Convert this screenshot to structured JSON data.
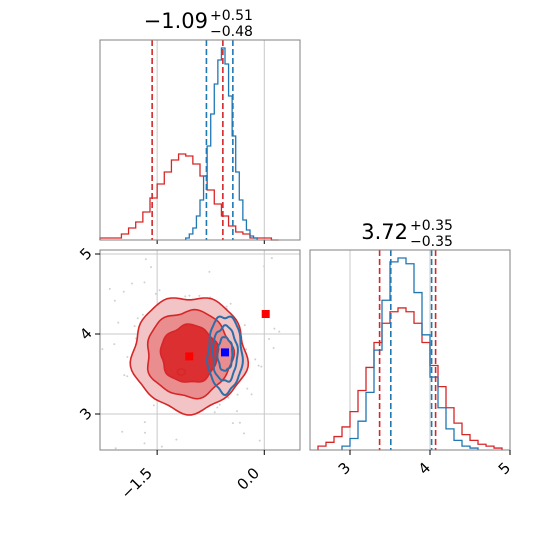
{
  "chart_data": [
    {
      "type": "histogram",
      "panel": "top-left marginal",
      "title": {
        "median": "−1.09",
        "plus": "+0.51",
        "minus": "−0.48"
      },
      "xlim": [
        -2.3,
        0.5
      ],
      "grid": true,
      "series": [
        {
          "name": "",
          "color": "#d62728",
          "bin_edges": [
            -2.3,
            -2.2,
            -2.1,
            -2.0,
            -1.9,
            -1.8,
            -1.7,
            -1.6,
            -1.5,
            -1.4,
            -1.3,
            -1.2,
            -1.1,
            -1.0,
            -0.9,
            -0.8,
            -0.7,
            -0.6,
            -0.5,
            -0.4,
            -0.3,
            -0.2,
            -0.1,
            0.0,
            0.1,
            0.2
          ],
          "counts": [
            0.01,
            0.01,
            0.01,
            0.03,
            0.06,
            0.09,
            0.14,
            0.21,
            0.28,
            0.34,
            0.4,
            0.43,
            0.42,
            0.38,
            0.32,
            0.25,
            0.18,
            0.12,
            0.07,
            0.04,
            0.03,
            0.01,
            0.01,
            0.01,
            0.0
          ],
          "quantile_lines_x": [
            -1.57,
            -0.58
          ]
        },
        {
          "name": "",
          "color": "#1f77b4",
          "bin_edges": [
            -1.1,
            -1.05,
            -1.0,
            -0.95,
            -0.9,
            -0.85,
            -0.8,
            -0.75,
            -0.7,
            -0.65,
            -0.6,
            -0.55,
            -0.5,
            -0.45,
            -0.4,
            -0.35,
            -0.3,
            -0.25,
            -0.2,
            -0.15,
            -0.1
          ],
          "counts": [
            0.01,
            0.03,
            0.06,
            0.12,
            0.2,
            0.32,
            0.47,
            0.63,
            0.78,
            0.9,
            0.96,
            0.88,
            0.72,
            0.52,
            0.34,
            0.2,
            0.1,
            0.05,
            0.02,
            0.01
          ],
          "quantile_lines_x": [
            -0.81,
            -0.44
          ]
        }
      ]
    },
    {
      "type": "histogram",
      "panel": "bottom-right marginal",
      "title": {
        "median": "3.72",
        "plus": "+0.35",
        "minus": "−0.35"
      },
      "xlim": [
        2.5,
        5.0
      ],
      "xticks": [
        "3",
        "4",
        "5"
      ],
      "grid": true,
      "series": [
        {
          "name": "",
          "color": "#d62728",
          "bin_edges": [
            2.6,
            2.7,
            2.8,
            2.9,
            3.0,
            3.1,
            3.2,
            3.3,
            3.4,
            3.5,
            3.6,
            3.7,
            3.8,
            3.9,
            4.0,
            4.1,
            4.2,
            4.3,
            4.4,
            4.5,
            4.6,
            4.7,
            4.8,
            4.9
          ],
          "counts": [
            0.02,
            0.04,
            0.07,
            0.12,
            0.2,
            0.31,
            0.43,
            0.56,
            0.66,
            0.72,
            0.74,
            0.72,
            0.66,
            0.56,
            0.44,
            0.33,
            0.22,
            0.14,
            0.08,
            0.05,
            0.03,
            0.02,
            0.01
          ],
          "quantile_lines_x": [
            3.37,
            4.07
          ]
        },
        {
          "name": "",
          "color": "#1f77b4",
          "bin_edges": [
            2.9,
            3.0,
            3.1,
            3.2,
            3.3,
            3.4,
            3.5,
            3.6,
            3.7,
            3.8,
            3.9,
            4.0,
            4.1,
            4.2,
            4.3,
            4.4,
            4.5,
            4.6
          ],
          "counts": [
            0.02,
            0.06,
            0.15,
            0.3,
            0.52,
            0.78,
            0.98,
            1.0,
            0.97,
            0.82,
            0.6,
            0.38,
            0.22,
            0.11,
            0.05,
            0.02,
            0.01
          ],
          "quantile_lines_x": [
            3.51,
            4.02
          ]
        }
      ]
    },
    {
      "type": "contour",
      "panel": "bottom-left joint",
      "xlim": [
        -2.3,
        0.5
      ],
      "ylim": [
        2.55,
        5.05
      ],
      "xticks": [
        "−1.5",
        "0.0"
      ],
      "yticks": [
        "3",
        "4",
        "5"
      ],
      "grid": true,
      "series": [
        {
          "name": "",
          "color": "#d62728",
          "center": [
            -1.05,
            3.75
          ],
          "sigma": [
            0.42,
            0.36
          ],
          "marker": {
            "shape": "square",
            "x": -1.05,
            "y": 3.72
          }
        },
        {
          "name": "",
          "color": "#1f77b4",
          "center": [
            -0.55,
            3.75
          ],
          "sigma": [
            0.15,
            0.3
          ],
          "marker": {
            "shape": "square",
            "x": -0.55,
            "y": 3.77
          }
        }
      ],
      "extra_markers": [
        {
          "color": "#d62728",
          "shape": "square",
          "x": 0.02,
          "y": 4.25
        }
      ]
    }
  ]
}
